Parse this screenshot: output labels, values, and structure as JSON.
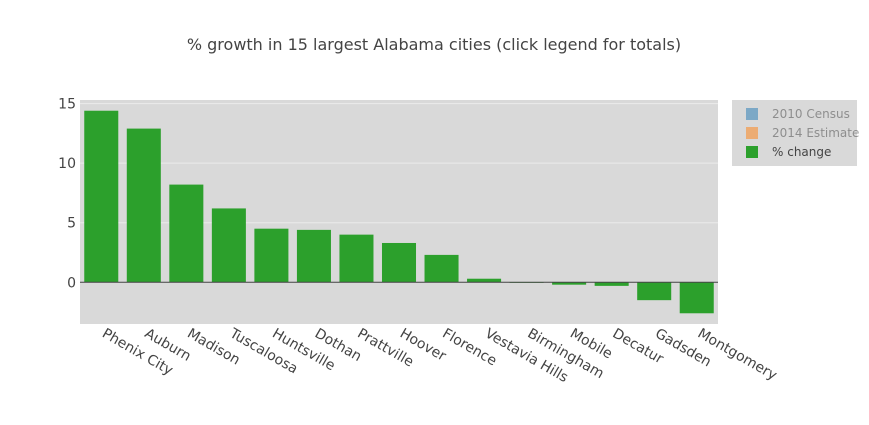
{
  "chart_data": {
    "type": "bar",
    "title": "% growth in 15 largest Alabama cities (click legend for totals)",
    "xlabel": "",
    "ylabel": "",
    "ylim": [
      -3.5,
      15.3
    ],
    "yticks": [
      0,
      5,
      10,
      15
    ],
    "grid": true,
    "legend_position": "top-right",
    "categories": [
      "Phenix City",
      "Auburn",
      "Madison",
      "Tuscaloosa",
      "Huntsville",
      "Dothan",
      "Prattville",
      "Hoover",
      "Florence",
      "Vestavia Hills",
      "Birmingham",
      "Mobile",
      "Decatur",
      "Gadsden",
      "Montgomery"
    ],
    "series": [
      {
        "name": "2010 Census",
        "visible": false,
        "color": "#1f77b4"
      },
      {
        "name": "2014 Estimate",
        "visible": false,
        "color": "#ff7f0e"
      },
      {
        "name": "% change",
        "visible": true,
        "color": "#2ca02c",
        "values": [
          14.4,
          12.9,
          8.2,
          6.2,
          4.5,
          4.4,
          4.0,
          3.3,
          2.3,
          0.3,
          0.0,
          -0.2,
          -0.3,
          -1.5,
          -2.6
        ]
      }
    ]
  }
}
